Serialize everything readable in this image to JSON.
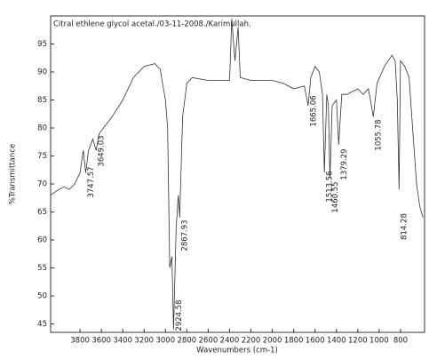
{
  "chart_data": {
    "type": "line",
    "title": "Citral ethlene glycol acetal./03-11-2008./Karimullah.",
    "xlabel": "Wavenumbers (cm-1)",
    "ylabel": "%Transmittance",
    "annotations": [
      "3747.57",
      "3649.03",
      "2924.58",
      "2867.93",
      "1665.06",
      "1513.56",
      "1460.55",
      "1379.29",
      "1055.78",
      "814.28"
    ],
    "xlim": [
      4075,
      575
    ],
    "ylim": [
      43.5,
      100
    ],
    "xticks": [
      3800,
      3600,
      3400,
      3200,
      3000,
      2800,
      2600,
      2400,
      2200,
      2000,
      1800,
      1600,
      1400,
      1200,
      1000,
      800
    ],
    "yticks": [
      45,
      50,
      55,
      60,
      65,
      70,
      75,
      80,
      85,
      90,
      95
    ],
    "series": [
      {
        "color": "#333333",
        "x": [
          4075,
          4000,
          3950,
          3900,
          3850,
          3800,
          3770,
          3747,
          3720,
          3680,
          3649,
          3620,
          3580,
          3500,
          3400,
          3300,
          3200,
          3100,
          3050,
          3000,
          2980,
          2960,
          2940,
          2924,
          2900,
          2880,
          2867,
          2840,
          2800,
          2750,
          2600,
          2400,
          2380,
          2350,
          2320,
          2300,
          2200,
          2000,
          1900,
          1800,
          1700,
          1665,
          1640,
          1600,
          1560,
          1530,
          1513,
          1490,
          1475,
          1460,
          1440,
          1400,
          1379,
          1350,
          1300,
          1200,
          1150,
          1100,
          1055,
          1020,
          950,
          880,
          850,
          830,
          814,
          800,
          760,
          720,
          680,
          650,
          620,
          590
        ],
        "values": [
          68,
          69,
          69.5,
          69,
          70,
          72,
          76,
          72,
          76,
          78,
          76,
          79,
          80,
          82,
          85,
          89,
          91,
          91.5,
          90.5,
          85,
          80,
          55,
          57,
          44,
          62,
          68,
          64,
          82,
          88,
          89,
          88.5,
          88.5,
          99.5,
          92,
          98,
          89,
          88.5,
          88.5,
          88,
          87,
          87.5,
          84,
          89,
          91,
          90,
          86,
          72,
          86,
          84,
          71,
          84,
          85,
          77,
          86,
          86,
          87,
          86,
          87,
          82,
          88,
          91,
          93,
          92,
          85,
          69,
          92,
          91,
          89,
          78,
          70,
          66,
          64
        ]
      }
    ]
  }
}
